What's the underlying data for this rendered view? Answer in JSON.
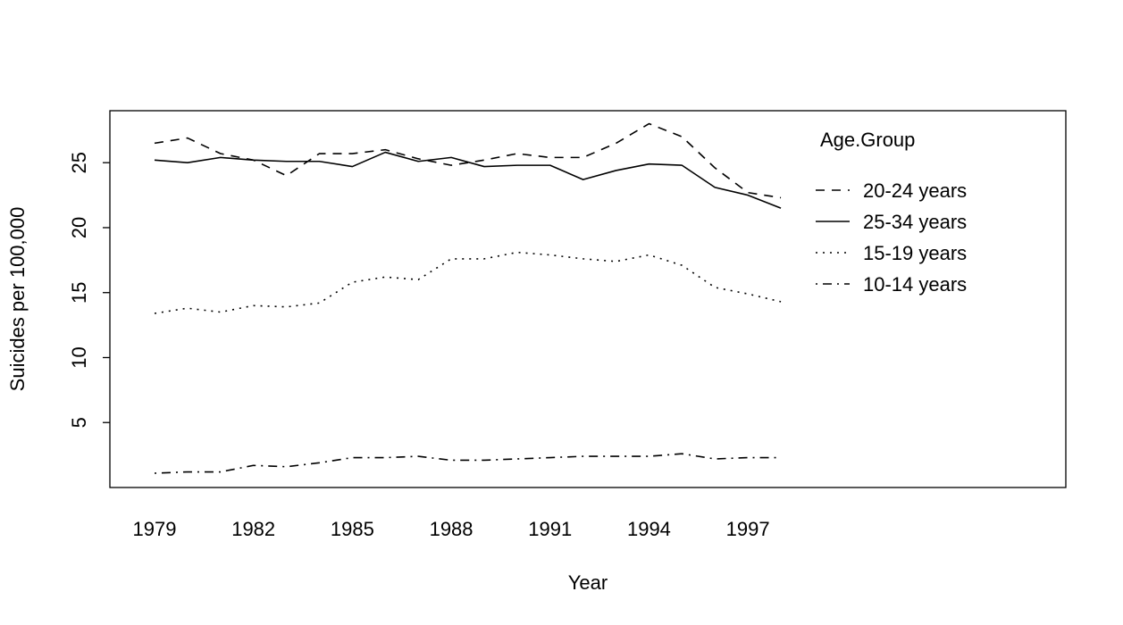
{
  "chart_data": {
    "type": "line",
    "title": "",
    "xlabel": "Year",
    "ylabel": "Suicides per 100,000",
    "x": [
      1979,
      1980,
      1981,
      1982,
      1983,
      1984,
      1985,
      1986,
      1987,
      1988,
      1989,
      1990,
      1991,
      1992,
      1993,
      1994,
      1995,
      1996,
      1997,
      1998
    ],
    "xticks": [
      "1979",
      "1982",
      "1985",
      "1988",
      "1991",
      "1994",
      "1997"
    ],
    "yticks": [
      "5",
      "10",
      "15",
      "20",
      "25"
    ],
    "xlim": [
      1979,
      2008
    ],
    "ylim": [
      0,
      29
    ],
    "grid": false,
    "legend": {
      "title": "Age.Group",
      "position": "top-right"
    },
    "series": [
      {
        "name": "20-24 years",
        "dash": "dashed",
        "values": [
          26.5,
          26.9,
          25.7,
          25.2,
          24.0,
          25.7,
          25.7,
          26.0,
          25.3,
          24.8,
          25.2,
          25.7,
          25.4,
          25.4,
          26.5,
          28.0,
          27.0,
          24.6,
          22.7,
          22.3
        ]
      },
      {
        "name": "25-34 years",
        "dash": "solid",
        "values": [
          25.2,
          25.0,
          25.4,
          25.2,
          25.1,
          25.1,
          24.7,
          25.8,
          25.1,
          25.4,
          24.7,
          24.8,
          24.8,
          23.7,
          24.4,
          24.9,
          24.8,
          23.1,
          22.5,
          21.5
        ]
      },
      {
        "name": "15-19 years",
        "dash": "dotted",
        "values": [
          13.4,
          13.8,
          13.5,
          14.0,
          13.9,
          14.2,
          15.8,
          16.2,
          16.0,
          17.6,
          17.6,
          18.1,
          17.9,
          17.6,
          17.4,
          17.9,
          17.1,
          15.4,
          14.9,
          14.3
        ]
      },
      {
        "name": "10-14 years",
        "dash": "dotdash",
        "values": [
          1.1,
          1.2,
          1.2,
          1.7,
          1.6,
          1.9,
          2.3,
          2.3,
          2.4,
          2.1,
          2.1,
          2.2,
          2.3,
          2.4,
          2.4,
          2.4,
          2.6,
          2.2,
          2.3,
          2.3
        ]
      }
    ]
  }
}
